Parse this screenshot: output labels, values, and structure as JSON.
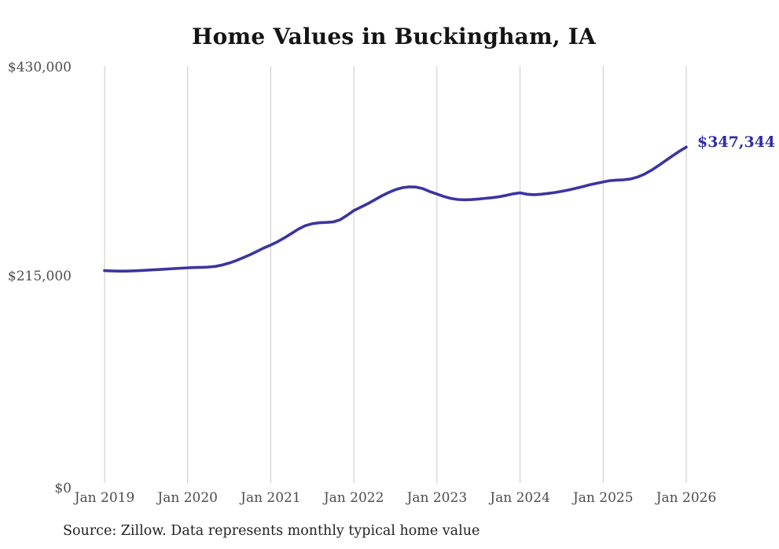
{
  "chart": {
    "title": "Home Values in Buckingham, IA",
    "end_label": "$347,344",
    "source": "Source: Zillow. Data represents monthly typical home value"
  },
  "colors": {
    "line": "#3b34a0",
    "end_label": "#2e2ca6",
    "gridline": "#c9c9c9",
    "tick_text": "#4d4d4d",
    "title_text": "#141414",
    "source_text": "#222222",
    "background": "#ffffff"
  },
  "chart_data": {
    "type": "line",
    "title": "Home Values in Buckingham, IA",
    "xlabel": "",
    "ylabel": "",
    "ylim": [
      0,
      430000
    ],
    "grid": "vertical-only",
    "legend": "none",
    "x_interval": "monthly",
    "x_start": "2019-01",
    "x_end": "2026-01",
    "x_ticks": [
      "Jan 2019",
      "Jan 2020",
      "Jan 2021",
      "Jan 2022",
      "Jan 2023",
      "Jan 2024",
      "Jan 2025",
      "Jan 2026"
    ],
    "y_ticks": [
      {
        "label": "$430,000",
        "value": 430000
      },
      {
        "label": "$215,000",
        "value": 215000
      },
      {
        "label": "$0",
        "value": 0
      }
    ],
    "series": [
      {
        "name": "Typical home value",
        "final_value": 347344,
        "final_value_label": "$347,344",
        "values": [
          220200,
          219900,
          219700,
          219700,
          219900,
          220200,
          220600,
          221000,
          221400,
          221800,
          222300,
          222700,
          223100,
          223400,
          223600,
          223900,
          224500,
          226000,
          228000,
          230500,
          233500,
          236500,
          240000,
          243500,
          246500,
          250000,
          254000,
          258500,
          263000,
          266500,
          268500,
          269500,
          269800,
          270300,
          272500,
          277000,
          282000,
          285500,
          289000,
          293000,
          297000,
          300500,
          303500,
          305500,
          306400,
          306200,
          304500,
          301500,
          299000,
          296500,
          294500,
          293400,
          293100,
          293300,
          293900,
          294600,
          295300,
          296200,
          297600,
          299200,
          300300,
          298800,
          298300,
          298800,
          299600,
          300600,
          301800,
          303200,
          304800,
          306600,
          308400,
          310000,
          311500,
          312800,
          313400,
          313700,
          314600,
          316600,
          319600,
          323600,
          328300,
          333300,
          338300,
          343000,
          347344
        ]
      }
    ]
  }
}
